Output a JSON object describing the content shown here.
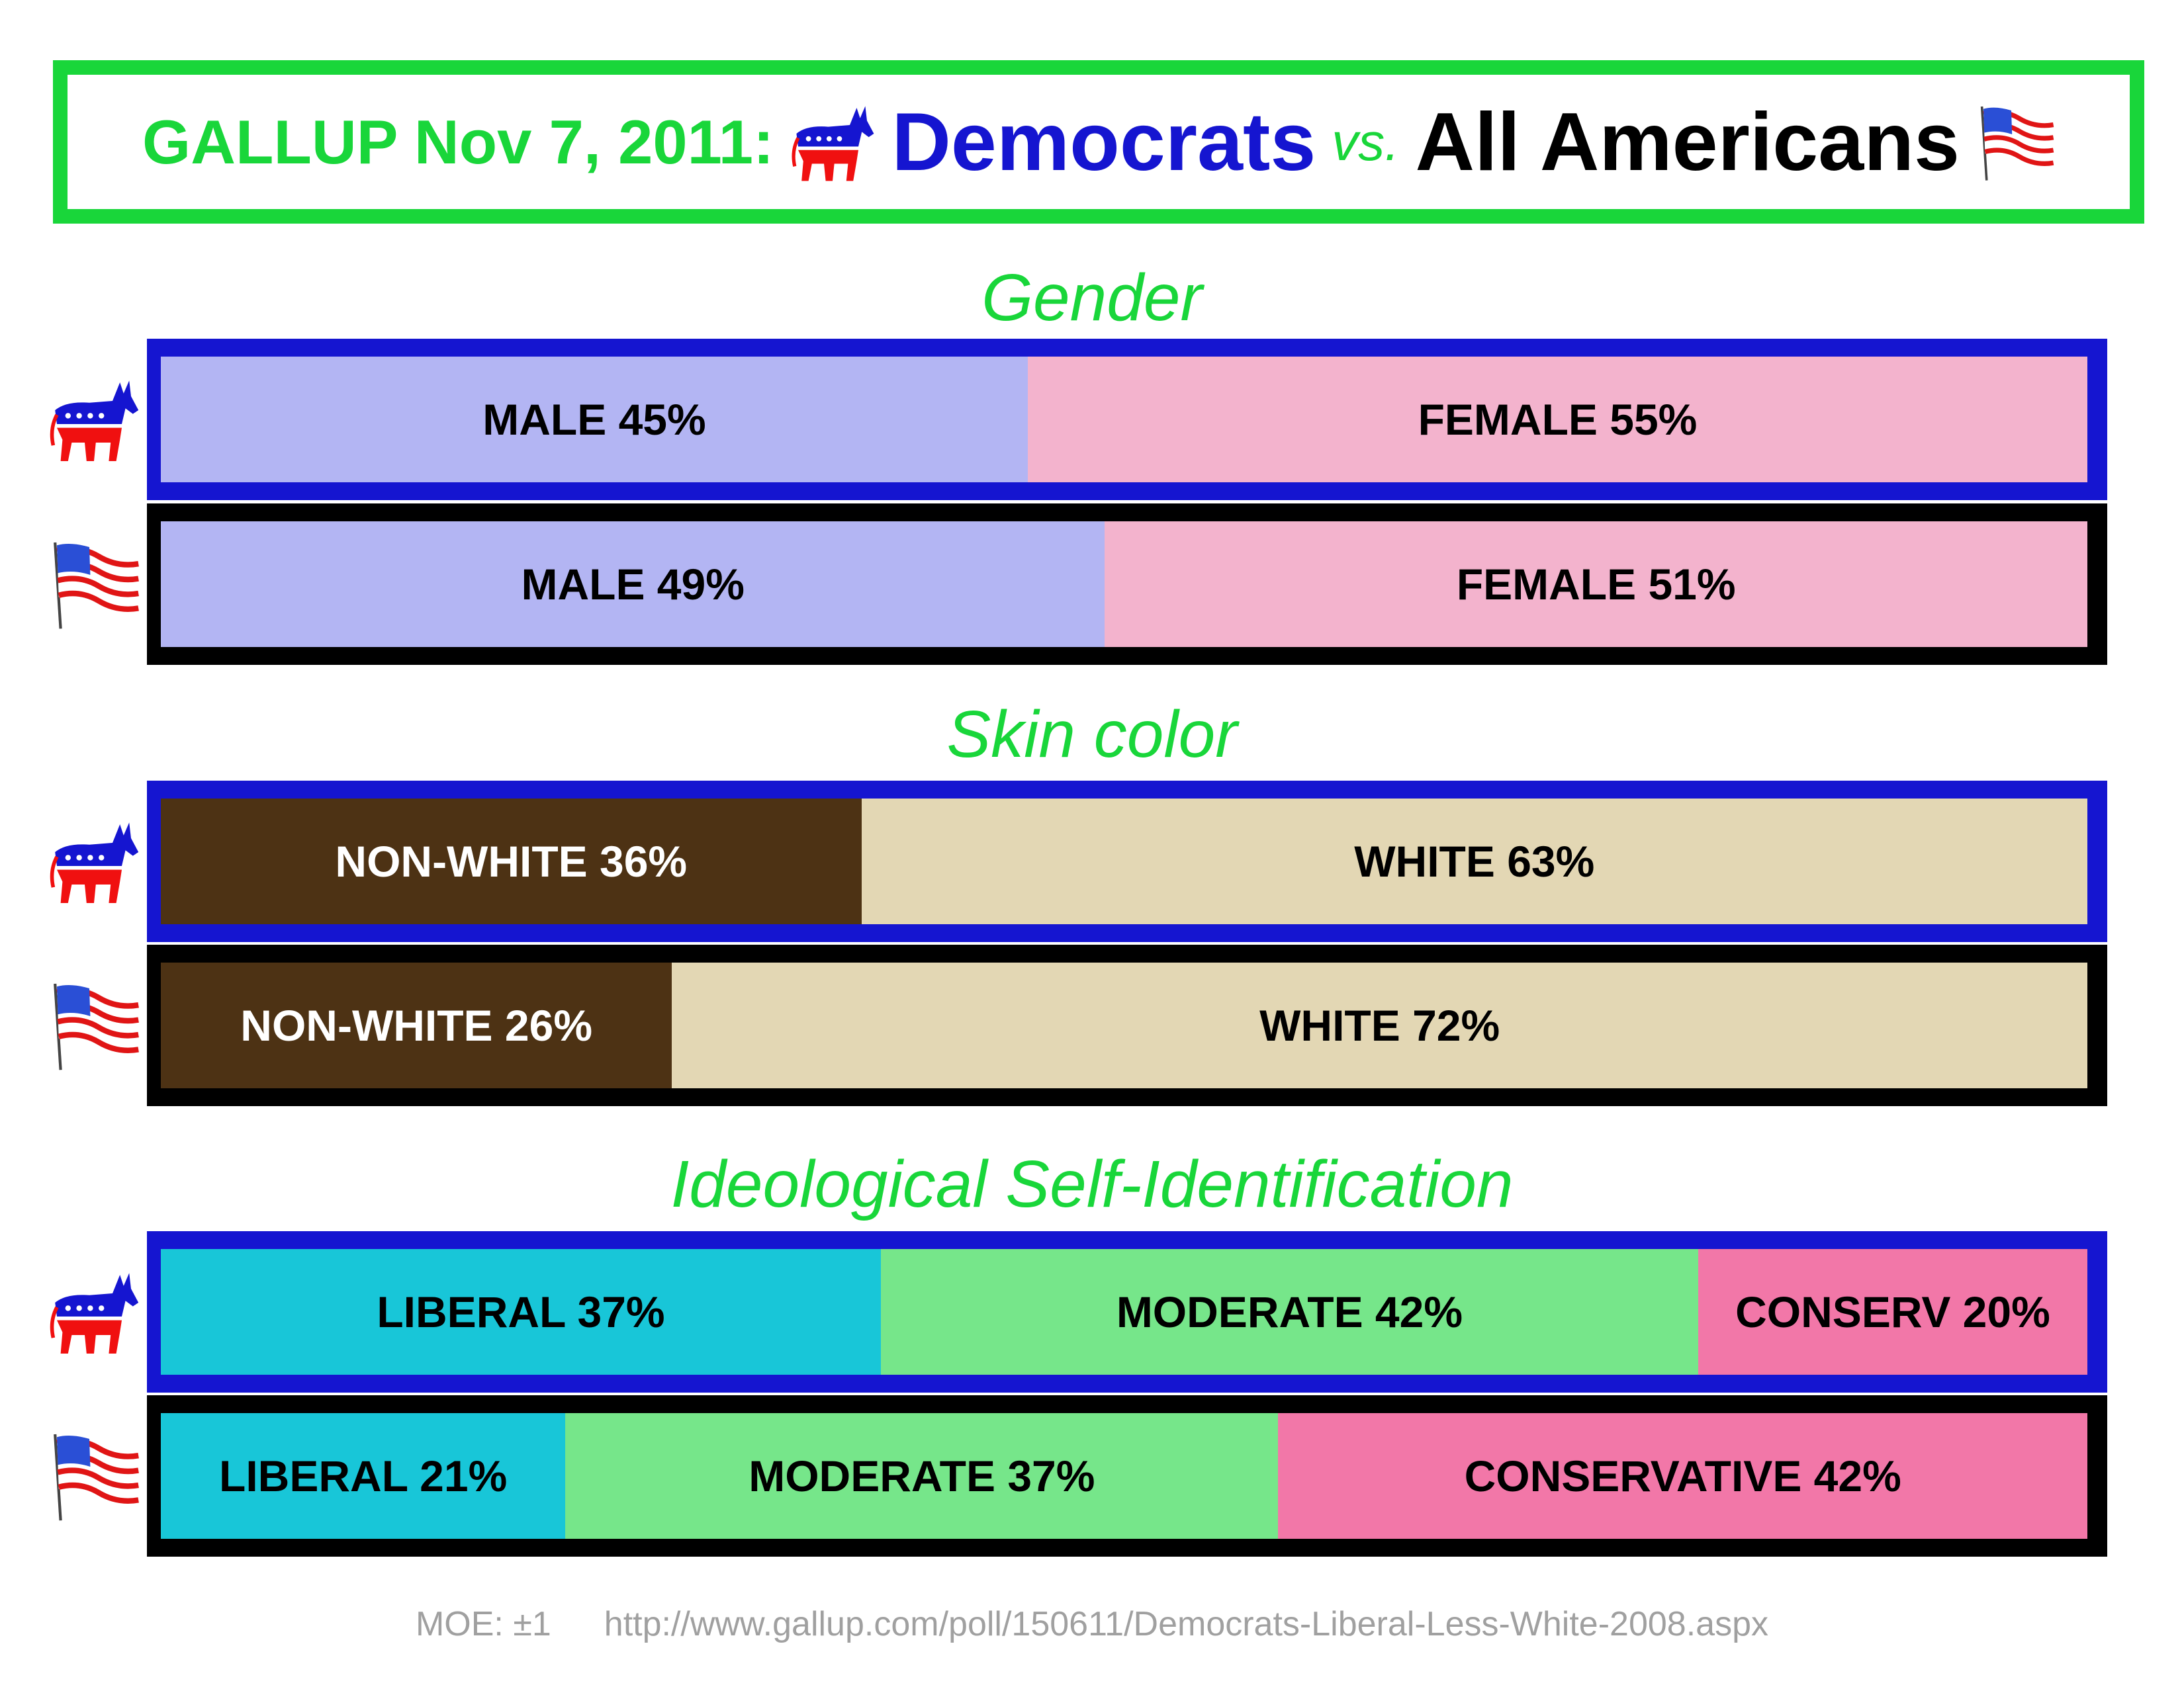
{
  "title": {
    "prefix": "GALLUP Nov 7, 2011:",
    "democrats": "Democrats",
    "vs": "vs.",
    "all": "All Americans"
  },
  "colors": {
    "green": "#19d63a",
    "dem_blue": "#1515d0",
    "male": "#b3b5f3",
    "female": "#f3b3cd",
    "nonwhite": "#4d3214",
    "white": "#e3d7b4",
    "liberal": "#18c6d8",
    "moderate": "#76e68a",
    "conservative": "#f277a8"
  },
  "footer": {
    "moe": "MOE: ±1",
    "source": "http://www.gallup.com/poll/150611/Democrats-Liberal-Less-White-2008.aspx"
  },
  "chart_data": [
    {
      "type": "bar",
      "stacked": true,
      "title": "Gender",
      "rows": [
        {
          "group": "Democrats",
          "icon": "donkey-icon",
          "segments": [
            {
              "label": "MALE 45%",
              "value": 45,
              "color": "#b3b5f3",
              "text_color": "#000000"
            },
            {
              "label": "FEMALE 55%",
              "value": 55,
              "color": "#f3b3cd",
              "text_color": "#000000"
            }
          ]
        },
        {
          "group": "All Americans",
          "icon": "us-flag-icon",
          "segments": [
            {
              "label": "MALE 49%",
              "value": 49,
              "color": "#b3b5f3",
              "text_color": "#000000"
            },
            {
              "label": "FEMALE 51%",
              "value": 51,
              "color": "#f3b3cd",
              "text_color": "#000000"
            }
          ]
        }
      ]
    },
    {
      "type": "bar",
      "stacked": true,
      "title": "Skin color",
      "rows": [
        {
          "group": "Democrats",
          "icon": "donkey-icon",
          "segments": [
            {
              "label": "NON-WHITE 36%",
              "value": 36,
              "color": "#4d3214",
              "text_color": "#ffffff"
            },
            {
              "label": "WHITE 63%",
              "value": 63,
              "color": "#e3d7b4",
              "text_color": "#000000"
            }
          ]
        },
        {
          "group": "All Americans",
          "icon": "us-flag-icon",
          "segments": [
            {
              "label": "NON-WHITE 26%",
              "value": 26,
              "color": "#4d3214",
              "text_color": "#ffffff"
            },
            {
              "label": "WHITE 72%",
              "value": 72,
              "color": "#e3d7b4",
              "text_color": "#000000"
            }
          ]
        }
      ]
    },
    {
      "type": "bar",
      "stacked": true,
      "title": "Ideological Self-Identification",
      "rows": [
        {
          "group": "Democrats",
          "icon": "donkey-icon",
          "segments": [
            {
              "label": "LIBERAL 37%",
              "value": 37,
              "color": "#18c6d8",
              "text_color": "#000000"
            },
            {
              "label": "MODERATE 42%",
              "value": 42,
              "color": "#76e68a",
              "text_color": "#000000"
            },
            {
              "label": "CONSERV 20%",
              "value": 20,
              "color": "#f277a8",
              "text_color": "#000000"
            }
          ]
        },
        {
          "group": "All Americans",
          "icon": "us-flag-icon",
          "segments": [
            {
              "label": "LIBERAL 21%",
              "value": 21,
              "color": "#18c6d8",
              "text_color": "#000000"
            },
            {
              "label": "MODERATE 37%",
              "value": 37,
              "color": "#76e68a",
              "text_color": "#000000"
            },
            {
              "label": "CONSERVATIVE 42%",
              "value": 42,
              "color": "#f277a8",
              "text_color": "#000000"
            }
          ]
        }
      ]
    }
  ]
}
